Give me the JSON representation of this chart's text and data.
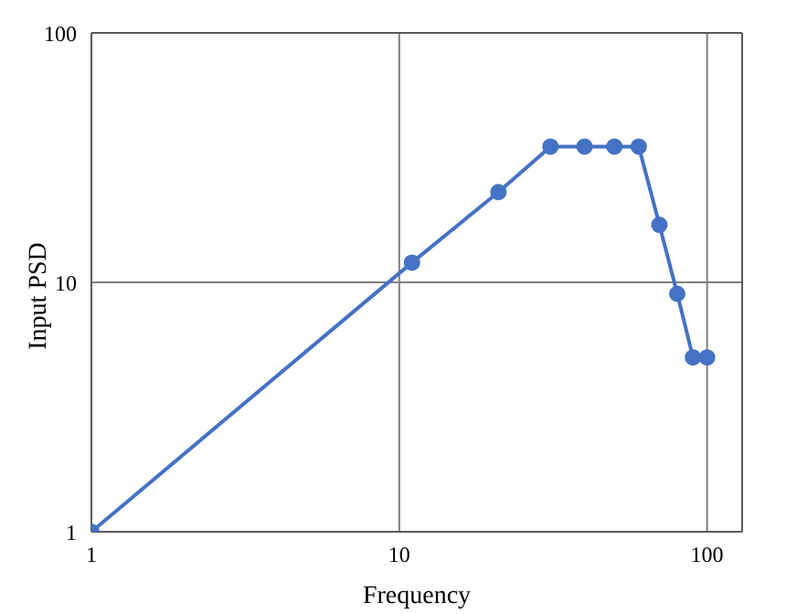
{
  "chart_data": {
    "type": "line",
    "xlabel": "Frequency",
    "ylabel": "Input PSD",
    "x": [
      1,
      11,
      21,
      31,
      40,
      50,
      60,
      70,
      80,
      90,
      100
    ],
    "series": [
      {
        "color": "#4472c4",
        "values": [
          1,
          12,
          23,
          35,
          35,
          35,
          35,
          17,
          9,
          5,
          5
        ]
      }
    ],
    "log": "xy",
    "xlim": [
      1,
      130
    ],
    "ylim": [
      1,
      100
    ],
    "xticks": [
      1,
      10,
      100
    ],
    "yticks": [
      1,
      10,
      100
    ],
    "grid": true,
    "marker": "circle",
    "line_style": "solid"
  }
}
